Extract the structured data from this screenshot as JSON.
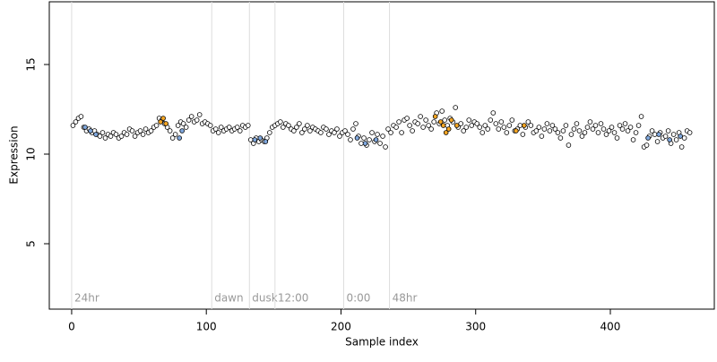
{
  "chart_data": {
    "type": "scatter",
    "x_label": "Sample index",
    "y_label": "Expression",
    "xlim": [
      -16.6,
      477.2
    ],
    "ylim": [
      1.35,
      18.5
    ],
    "xticks": [
      0,
      100,
      200,
      300,
      400
    ],
    "yticks": [
      5,
      10,
      15
    ],
    "markers": [
      {
        "x": 0,
        "label": "24hr"
      },
      {
        "x": 104,
        "label": "dawn"
      },
      {
        "x": 132,
        "label": "dusk"
      },
      {
        "x": 151,
        "label": "12:00"
      },
      {
        "x": 202,
        "label": "0:00"
      },
      {
        "x": 236,
        "label": "48hr"
      }
    ],
    "series": [
      {
        "color": "#ffffff",
        "x": [
          1,
          3,
          5,
          7,
          9,
          11,
          13,
          15,
          17,
          19,
          21,
          23,
          25,
          27,
          29,
          31,
          33,
          35,
          37,
          39,
          41,
          43,
          45,
          47,
          49,
          51,
          53,
          55,
          57,
          59,
          61,
          63,
          65,
          67,
          69,
          71,
          73,
          75,
          77,
          79,
          81,
          83,
          85,
          87,
          89,
          91,
          93,
          95,
          97,
          99,
          101,
          103,
          105,
          107,
          109,
          111,
          113,
          115,
          117,
          119,
          121,
          123,
          125,
          127,
          129,
          131,
          133,
          135,
          137,
          139,
          141,
          143,
          145,
          147,
          149,
          151,
          153,
          155,
          157,
          159,
          161,
          163,
          165,
          167,
          169,
          171,
          173,
          175,
          177,
          179,
          181,
          183,
          185,
          187,
          189,
          191,
          193,
          195,
          197,
          199,
          201,
          203,
          205,
          207,
          209,
          211,
          213,
          215,
          217,
          219,
          221,
          223,
          225,
          227,
          229,
          231,
          233,
          235,
          237,
          239,
          241,
          243,
          245,
          247,
          249,
          251,
          253,
          255,
          257,
          259,
          261,
          263,
          265,
          267,
          269,
          271,
          273,
          275,
          277,
          279,
          281,
          283,
          285,
          287,
          289,
          291,
          293,
          295,
          297,
          299,
          301,
          303,
          305,
          307,
          309,
          311,
          313,
          315,
          317,
          319,
          321,
          323,
          325,
          327,
          329,
          331,
          333,
          335,
          337,
          339,
          341,
          343,
          345,
          347,
          349,
          351,
          353,
          355,
          357,
          359,
          361,
          363,
          365,
          367,
          369,
          371,
          373,
          375,
          377,
          379,
          381,
          383,
          385,
          387,
          389,
          391,
          393,
          395,
          397,
          399,
          401,
          403,
          405,
          407,
          409,
          411,
          413,
          415,
          417,
          419,
          421,
          423,
          425,
          427,
          429,
          431,
          433,
          435,
          437,
          439,
          441,
          443,
          445,
          447,
          449,
          451,
          453,
          455,
          457,
          459
        ],
        "values": [
          11.6,
          11.8,
          12.0,
          12.1,
          11.5,
          11.3,
          11.4,
          11.2,
          11.3,
          11.1,
          11.0,
          11.2,
          10.9,
          11.1,
          11.0,
          11.2,
          11.1,
          10.9,
          11.0,
          11.2,
          11.1,
          11.4,
          11.3,
          11.0,
          11.2,
          11.3,
          11.1,
          11.4,
          11.2,
          11.3,
          11.5,
          11.6,
          12.0,
          11.9,
          11.7,
          11.5,
          11.3,
          10.9,
          11.1,
          11.6,
          11.8,
          11.7,
          11.5,
          11.9,
          12.1,
          11.8,
          11.9,
          12.2,
          11.7,
          11.8,
          11.7,
          11.6,
          11.3,
          11.4,
          11.2,
          11.5,
          11.3,
          11.4,
          11.5,
          11.3,
          11.4,
          11.5,
          11.3,
          11.6,
          11.5,
          11.6,
          10.8,
          10.6,
          10.9,
          10.7,
          10.8,
          10.7,
          10.9,
          11.2,
          11.5,
          11.6,
          11.7,
          11.8,
          11.5,
          11.7,
          11.6,
          11.4,
          11.3,
          11.5,
          11.7,
          11.2,
          11.4,
          11.6,
          11.3,
          11.5,
          11.4,
          11.3,
          11.2,
          11.5,
          11.4,
          11.1,
          11.3,
          11.2,
          11.4,
          11.0,
          11.2,
          11.3,
          11.1,
          10.8,
          11.4,
          11.7,
          11.0,
          10.6,
          10.9,
          10.5,
          10.8,
          11.2,
          10.7,
          11.1,
          10.6,
          11.0,
          10.4,
          11.4,
          11.2,
          11.6,
          11.5,
          11.8,
          11.2,
          11.9,
          12.0,
          11.6,
          11.3,
          11.8,
          11.7,
          12.1,
          11.5,
          11.9,
          11.6,
          11.4,
          11.8,
          12.3,
          11.7,
          12.4,
          11.9,
          11.6,
          12.0,
          11.8,
          12.6,
          11.5,
          11.7,
          11.3,
          11.5,
          11.9,
          11.6,
          11.8,
          11.7,
          11.5,
          11.2,
          11.6,
          11.4,
          11.9,
          12.3,
          11.7,
          11.4,
          11.8,
          11.5,
          11.2,
          11.6,
          11.9,
          11.3,
          11.4,
          11.6,
          11.1,
          11.5,
          11.8,
          11.6,
          11.2,
          11.3,
          11.5,
          11.0,
          11.4,
          11.7,
          11.3,
          11.6,
          11.4,
          11.2,
          10.9,
          11.3,
          11.6,
          10.5,
          11.1,
          11.4,
          11.7,
          11.3,
          11.0,
          11.2,
          11.5,
          11.8,
          11.4,
          11.6,
          11.2,
          11.7,
          11.4,
          11.1,
          11.3,
          11.5,
          11.2,
          10.9,
          11.6,
          11.4,
          11.7,
          11.3,
          11.5,
          10.8,
          11.2,
          11.6,
          12.1,
          10.4,
          10.5,
          11.0,
          11.3,
          11.1,
          10.7,
          11.2,
          10.9,
          11.0,
          11.3,
          10.6,
          11.1,
          10.8,
          11.2,
          10.4,
          10.9,
          11.3,
          11.2
        ]
      },
      {
        "color": "#f5a623",
        "x": [
          66,
          68,
          70,
          270,
          274,
          276,
          278,
          280,
          282,
          286,
          330,
          336
        ],
        "values": [
          11.8,
          12.0,
          11.7,
          12.1,
          11.8,
          11.6,
          11.2,
          11.4,
          11.9,
          11.6,
          11.3,
          11.6
        ]
      },
      {
        "color": "#7fa7dd",
        "x": [
          10,
          14,
          18,
          80,
          82,
          136,
          140,
          144,
          212,
          218,
          226,
          428,
          436,
          444,
          452
        ],
        "values": [
          11.5,
          11.3,
          11.1,
          10.9,
          11.3,
          10.8,
          10.9,
          10.7,
          10.9,
          10.6,
          10.8,
          10.9,
          11.1,
          10.8,
          11.0
        ]
      }
    ]
  }
}
